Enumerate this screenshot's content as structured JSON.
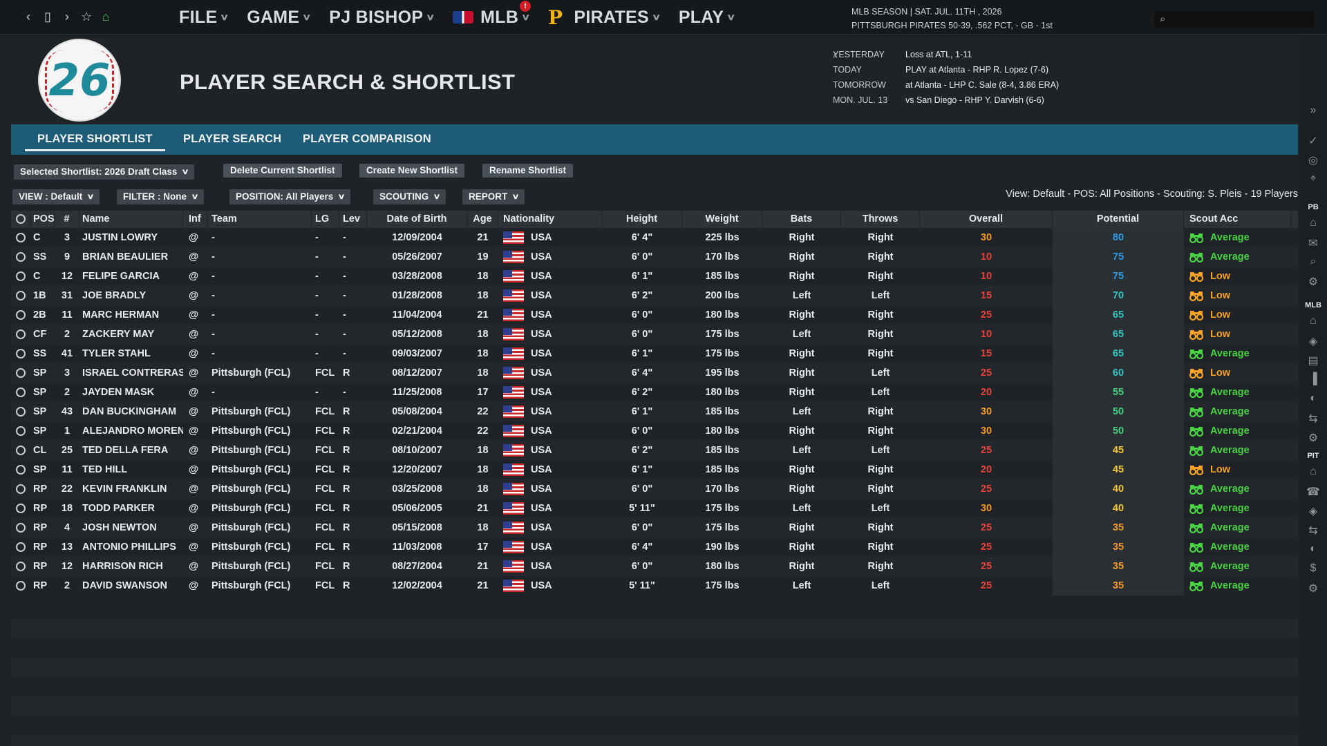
{
  "topbar": {
    "menu": [
      {
        "label": "FILE"
      },
      {
        "label": "GAME"
      },
      {
        "label": "PJ BISHOP"
      },
      {
        "label": "MLB"
      },
      {
        "label": "PIRATES"
      },
      {
        "label": "PLAY"
      }
    ],
    "mlb_badge": "!",
    "season_line1": "MLB SEASON  |  SAT. JUL. 11TH , 2026",
    "season_line2": "PITTSBURGH PIRATES   50-39, .562 PCT, - GB - 1st",
    "search_placeholder": ""
  },
  "header": {
    "logo_number": "26",
    "title": "PLAYER SEARCH & SHORTLIST",
    "schedule": [
      {
        "label": "YESTERDAY",
        "value": "Loss at ATL, 1-11"
      },
      {
        "label": "TODAY",
        "value": "PLAY at Atlanta - RHP R. Lopez (7-6)"
      },
      {
        "label": "TOMORROW",
        "value": "at Atlanta - LHP C. Sale (8-4, 3.86 ERA)"
      },
      {
        "label": "MON. JUL. 13",
        "value": "vs San Diego - RHP Y. Darvish (6-6)"
      }
    ]
  },
  "tabs": [
    "PLAYER SHORTLIST",
    "PLAYER SEARCH",
    "PLAYER COMPARISON"
  ],
  "toolbar": {
    "selected_shortlist": "Selected Shortlist: 2026 Draft Class",
    "delete": "Delete Current Shortlist",
    "create": "Create New Shortlist",
    "rename": "Rename Shortlist",
    "view": "VIEW : Default",
    "filter": "FILTER : None",
    "position": "POSITION: All Players",
    "scouting": "SCOUTING",
    "report": "REPORT",
    "view_info": "View: Default - POS: All Positions - Scouting: S. Pleis - 19 Players"
  },
  "columns": [
    "POS",
    "#",
    "Name",
    "Inf",
    "Team",
    "LG",
    "Lev",
    "Date of Birth",
    "Age",
    "Nationality",
    "Height",
    "Weight",
    "Bats",
    "Throws",
    "Overall",
    "Potential",
    "Scout Acc"
  ],
  "players": [
    {
      "pos": "C",
      "num": "3",
      "name": "JUSTIN LOWRY",
      "inf": "@",
      "team": "-",
      "lg": "-",
      "lev": "-",
      "dob": "12/09/2004",
      "age": "21",
      "nat": "USA",
      "ht": "6' 4\"",
      "wt": "225 lbs",
      "bats": "Right",
      "throws": "Right",
      "ovr": "30",
      "pot": "80",
      "scout": "Average"
    },
    {
      "pos": "SS",
      "num": "9",
      "name": "BRIAN BEAULIER",
      "inf": "@",
      "team": "-",
      "lg": "-",
      "lev": "-",
      "dob": "05/26/2007",
      "age": "19",
      "nat": "USA",
      "ht": "6' 0\"",
      "wt": "170 lbs",
      "bats": "Right",
      "throws": "Right",
      "ovr": "10",
      "pot": "75",
      "scout": "Average"
    },
    {
      "pos": "C",
      "num": "12",
      "name": "FELIPE GARCIA",
      "inf": "@",
      "team": "-",
      "lg": "-",
      "lev": "-",
      "dob": "03/28/2008",
      "age": "18",
      "nat": "USA",
      "ht": "6' 1\"",
      "wt": "185 lbs",
      "bats": "Right",
      "throws": "Right",
      "ovr": "10",
      "pot": "75",
      "scout": "Low"
    },
    {
      "pos": "1B",
      "num": "31",
      "name": "JOE BRADLY",
      "inf": "@",
      "team": "-",
      "lg": "-",
      "lev": "-",
      "dob": "01/28/2008",
      "age": "18",
      "nat": "USA",
      "ht": "6' 2\"",
      "wt": "200 lbs",
      "bats": "Left",
      "throws": "Left",
      "ovr": "15",
      "pot": "70",
      "scout": "Low"
    },
    {
      "pos": "2B",
      "num": "11",
      "name": "MARC HERMAN",
      "inf": "@",
      "team": "-",
      "lg": "-",
      "lev": "-",
      "dob": "11/04/2004",
      "age": "21",
      "nat": "USA",
      "ht": "6' 0\"",
      "wt": "180 lbs",
      "bats": "Right",
      "throws": "Right",
      "ovr": "25",
      "pot": "65",
      "scout": "Low"
    },
    {
      "pos": "CF",
      "num": "2",
      "name": "ZACKERY MAY",
      "inf": "@",
      "team": "-",
      "lg": "-",
      "lev": "-",
      "dob": "05/12/2008",
      "age": "18",
      "nat": "USA",
      "ht": "6' 0\"",
      "wt": "175 lbs",
      "bats": "Left",
      "throws": "Right",
      "ovr": "10",
      "pot": "65",
      "scout": "Low"
    },
    {
      "pos": "SS",
      "num": "41",
      "name": "TYLER STAHL",
      "inf": "@",
      "team": "-",
      "lg": "-",
      "lev": "-",
      "dob": "09/03/2007",
      "age": "18",
      "nat": "USA",
      "ht": "6' 1\"",
      "wt": "175 lbs",
      "bats": "Right",
      "throws": "Right",
      "ovr": "15",
      "pot": "65",
      "scout": "Average"
    },
    {
      "pos": "SP",
      "num": "3",
      "name": "ISRAEL CONTRERAS",
      "inf": "@",
      "team": "Pittsburgh (FCL)",
      "lg": "FCL",
      "lev": "R",
      "dob": "08/12/2007",
      "age": "18",
      "nat": "USA",
      "ht": "6' 4\"",
      "wt": "195 lbs",
      "bats": "Right",
      "throws": "Left",
      "ovr": "25",
      "pot": "60",
      "scout": "Low"
    },
    {
      "pos": "SP",
      "num": "2",
      "name": "JAYDEN MASK",
      "inf": "@",
      "team": "-",
      "lg": "-",
      "lev": "-",
      "dob": "11/25/2008",
      "age": "17",
      "nat": "USA",
      "ht": "6' 2\"",
      "wt": "180 lbs",
      "bats": "Right",
      "throws": "Left",
      "ovr": "20",
      "pot": "55",
      "scout": "Average"
    },
    {
      "pos": "SP",
      "num": "43",
      "name": "DAN BUCKINGHAM",
      "inf": "@",
      "team": "Pittsburgh (FCL)",
      "lg": "FCL",
      "lev": "R",
      "dob": "05/08/2004",
      "age": "22",
      "nat": "USA",
      "ht": "6' 1\"",
      "wt": "185 lbs",
      "bats": "Left",
      "throws": "Right",
      "ovr": "30",
      "pot": "50",
      "scout": "Average"
    },
    {
      "pos": "SP",
      "num": "1",
      "name": "ALEJANDRO MORENO",
      "inf": "@",
      "team": "Pittsburgh (FCL)",
      "lg": "FCL",
      "lev": "R",
      "dob": "02/21/2004",
      "age": "22",
      "nat": "USA",
      "ht": "6' 0\"",
      "wt": "180 lbs",
      "bats": "Right",
      "throws": "Right",
      "ovr": "30",
      "pot": "50",
      "scout": "Average"
    },
    {
      "pos": "CL",
      "num": "25",
      "name": "TED DELLA FERA",
      "inf": "@",
      "team": "Pittsburgh (FCL)",
      "lg": "FCL",
      "lev": "R",
      "dob": "08/10/2007",
      "age": "18",
      "nat": "USA",
      "ht": "6' 2\"",
      "wt": "185 lbs",
      "bats": "Left",
      "throws": "Left",
      "ovr": "25",
      "pot": "45",
      "scout": "Average"
    },
    {
      "pos": "SP",
      "num": "11",
      "name": "TED HILL",
      "inf": "@",
      "team": "Pittsburgh (FCL)",
      "lg": "FCL",
      "lev": "R",
      "dob": "12/20/2007",
      "age": "18",
      "nat": "USA",
      "ht": "6' 1\"",
      "wt": "185 lbs",
      "bats": "Right",
      "throws": "Right",
      "ovr": "20",
      "pot": "45",
      "scout": "Low"
    },
    {
      "pos": "RP",
      "num": "22",
      "name": "KEVIN FRANKLIN",
      "inf": "@",
      "team": "Pittsburgh (FCL)",
      "lg": "FCL",
      "lev": "R",
      "dob": "03/25/2008",
      "age": "18",
      "nat": "USA",
      "ht": "6' 0\"",
      "wt": "170 lbs",
      "bats": "Right",
      "throws": "Right",
      "ovr": "25",
      "pot": "40",
      "scout": "Average"
    },
    {
      "pos": "RP",
      "num": "18",
      "name": "TODD PARKER",
      "inf": "@",
      "team": "Pittsburgh (FCL)",
      "lg": "FCL",
      "lev": "R",
      "dob": "05/06/2005",
      "age": "21",
      "nat": "USA",
      "ht": "5' 11\"",
      "wt": "175 lbs",
      "bats": "Left",
      "throws": "Left",
      "ovr": "30",
      "pot": "40",
      "scout": "Average"
    },
    {
      "pos": "RP",
      "num": "4",
      "name": "JOSH NEWTON",
      "inf": "@",
      "team": "Pittsburgh (FCL)",
      "lg": "FCL",
      "lev": "R",
      "dob": "05/15/2008",
      "age": "18",
      "nat": "USA",
      "ht": "6' 0\"",
      "wt": "175 lbs",
      "bats": "Right",
      "throws": "Right",
      "ovr": "25",
      "pot": "35",
      "scout": "Average"
    },
    {
      "pos": "RP",
      "num": "13",
      "name": "ANTONIO PHILLIPS",
      "inf": "@",
      "team": "Pittsburgh (FCL)",
      "lg": "FCL",
      "lev": "R",
      "dob": "11/03/2008",
      "age": "17",
      "nat": "USA",
      "ht": "6' 4\"",
      "wt": "190 lbs",
      "bats": "Right",
      "throws": "Right",
      "ovr": "25",
      "pot": "35",
      "scout": "Average"
    },
    {
      "pos": "RP",
      "num": "12",
      "name": "HARRISON RICH",
      "inf": "@",
      "team": "Pittsburgh (FCL)",
      "lg": "FCL",
      "lev": "R",
      "dob": "08/27/2004",
      "age": "21",
      "nat": "USA",
      "ht": "6' 0\"",
      "wt": "180 lbs",
      "bats": "Right",
      "throws": "Right",
      "ovr": "25",
      "pot": "35",
      "scout": "Average"
    },
    {
      "pos": "RP",
      "num": "2",
      "name": "DAVID SWANSON",
      "inf": "@",
      "team": "Pittsburgh (FCL)",
      "lg": "FCL",
      "lev": "R",
      "dob": "12/02/2004",
      "age": "21",
      "nat": "USA",
      "ht": "5' 11\"",
      "wt": "175 lbs",
      "bats": "Left",
      "throws": "Left",
      "ovr": "25",
      "pot": "35",
      "scout": "Average"
    }
  ],
  "rightbar": {
    "label_pb": "PB",
    "label_mlb": "MLB",
    "label_pit": "PIT"
  },
  "colors": {
    "accent_tab": "#1d5b76",
    "overall_orange": "#f39a2a",
    "overall_red": "#e8443d",
    "potential_blue": "#2d9be8",
    "potential_teal": "#38c7c2",
    "potential_green": "#45d17f",
    "potential_yellow": "#f4c83a",
    "scout_average": "#49d246",
    "scout_low": "#f5a226"
  }
}
